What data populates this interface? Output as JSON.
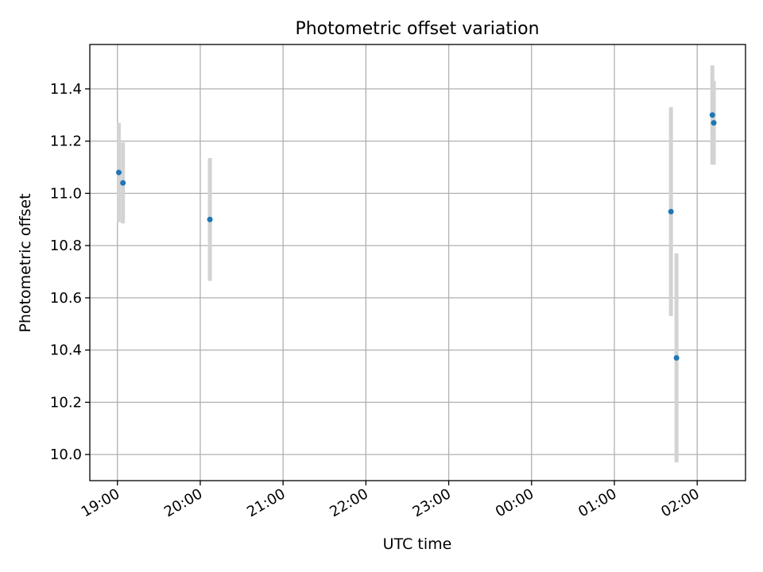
{
  "chart_data": {
    "type": "scatter",
    "title": "Photometric offset variation",
    "xlabel": "UTC time",
    "ylabel": "Photometric offset",
    "grid": true,
    "x_axis": "time",
    "x_range": [
      "18:40",
      "02:35"
    ],
    "x_ticks": [
      "19:00",
      "20:00",
      "21:00",
      "22:00",
      "23:00",
      "00:00",
      "01:00",
      "02:00"
    ],
    "ylim": [
      9.9,
      11.57
    ],
    "y_ticks": [
      "10.0",
      "10.2",
      "10.4",
      "10.6",
      "10.8",
      "11.0",
      "11.2",
      "11.4"
    ],
    "colors": {
      "points": "#1f77b4",
      "error_bars": "#d3d3d3",
      "grid": "#b0b0b0"
    },
    "series": [
      {
        "points": [
          {
            "x": "19:01",
            "y": 11.08,
            "y_err": 0.19
          },
          {
            "x": "19:04",
            "y": 11.04,
            "y_err": 0.155
          },
          {
            "x": "20:07",
            "y": 10.9,
            "y_err": 0.235
          },
          {
            "x": "01:41",
            "y": 10.93,
            "y_err": 0.4
          },
          {
            "x": "01:45",
            "y": 10.37,
            "y_err": 0.4
          },
          {
            "x": "02:11",
            "y": 11.3,
            "y_err": 0.19
          },
          {
            "x": "02:12",
            "y": 11.27,
            "y_err": 0.16
          }
        ]
      }
    ]
  }
}
